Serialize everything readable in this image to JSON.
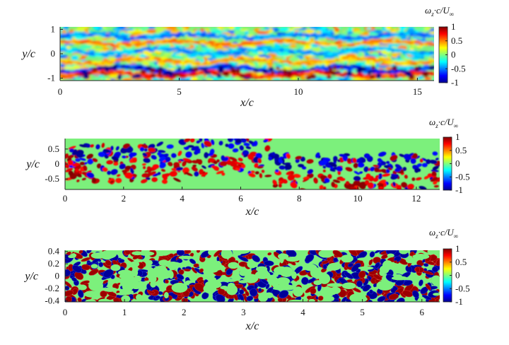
{
  "chart_data": [
    {
      "type": "heatmap",
      "xlabel": "x/c",
      "ylabel": "y/c",
      "xlim": [
        0,
        15.7
      ],
      "ylim": [
        -1.1,
        1.1
      ],
      "xticks": [
        0,
        5,
        10,
        15
      ],
      "yticks": [
        1,
        0,
        -1
      ],
      "xtick_labels": [
        "0",
        "5",
        "10",
        "15"
      ],
      "ytick_labels": [
        "1",
        "0",
        "-1"
      ],
      "colorbar": {
        "title": "ω_z·c/U_∞",
        "title_main": "ω",
        "title_sub1": "z",
        "title_mid": "·c/U",
        "title_sub2": "∞",
        "ticks": [
          1,
          0.5,
          0,
          -0.5,
          -1
        ],
        "tick_labels": [
          "1",
          "0.5",
          "0",
          "-0.5",
          "-1"
        ],
        "range": [
          -1,
          1
        ],
        "colormap": "jet"
      },
      "style": "smooth"
    },
    {
      "type": "heatmap",
      "xlabel": "x/c",
      "ylabel": "y/c",
      "xlim": [
        0,
        12.8
      ],
      "ylim": [
        -0.85,
        0.85
      ],
      "xticks": [
        0,
        2,
        4,
        6,
        8,
        10,
        12
      ],
      "yticks": [
        0.5,
        0,
        -0.5
      ],
      "xtick_labels": [
        "0",
        "2",
        "4",
        "6",
        "8",
        "10",
        "12"
      ],
      "ytick_labels": [
        "0.5",
        "0",
        "-0.5"
      ],
      "colorbar": {
        "title": "ω_z·c/U_∞",
        "title_main": "ω",
        "title_sub1": "z",
        "title_mid": "·c/U",
        "title_sub2": "∞",
        "ticks": [
          1,
          0.5,
          0,
          -0.5,
          -1
        ],
        "tick_labels": [
          "1",
          "0.5",
          "0",
          "-0.5",
          "-1"
        ],
        "range": [
          -1,
          1
        ],
        "colormap": "jet"
      },
      "style": "patchy"
    },
    {
      "type": "heatmap",
      "xlabel": "x/c",
      "ylabel": "y/c",
      "xlim": [
        0,
        6.3
      ],
      "ylim": [
        -0.42,
        0.42
      ],
      "xticks": [
        0,
        1,
        2,
        3,
        4,
        5,
        6
      ],
      "yticks": [
        0.4,
        0.2,
        0,
        -0.2,
        -0.4
      ],
      "xtick_labels": [
        "0",
        "1",
        "2",
        "3",
        "4",
        "5",
        "6"
      ],
      "ytick_labels": [
        "0.4",
        "0.2",
        "0",
        "-0.2",
        "-0.4"
      ],
      "colorbar": {
        "title": "ω_z·c/U_∞",
        "title_main": "ω",
        "title_sub1": "z",
        "title_mid": "·c/U",
        "title_sub2": "∞",
        "ticks": [
          1,
          0.5,
          0,
          -0.5,
          -1
        ],
        "tick_labels": [
          "1",
          "0.5",
          "0",
          "-0.5",
          "-1"
        ],
        "range": [
          -1,
          1
        ],
        "colormap": "jet"
      },
      "style": "saturated"
    }
  ]
}
